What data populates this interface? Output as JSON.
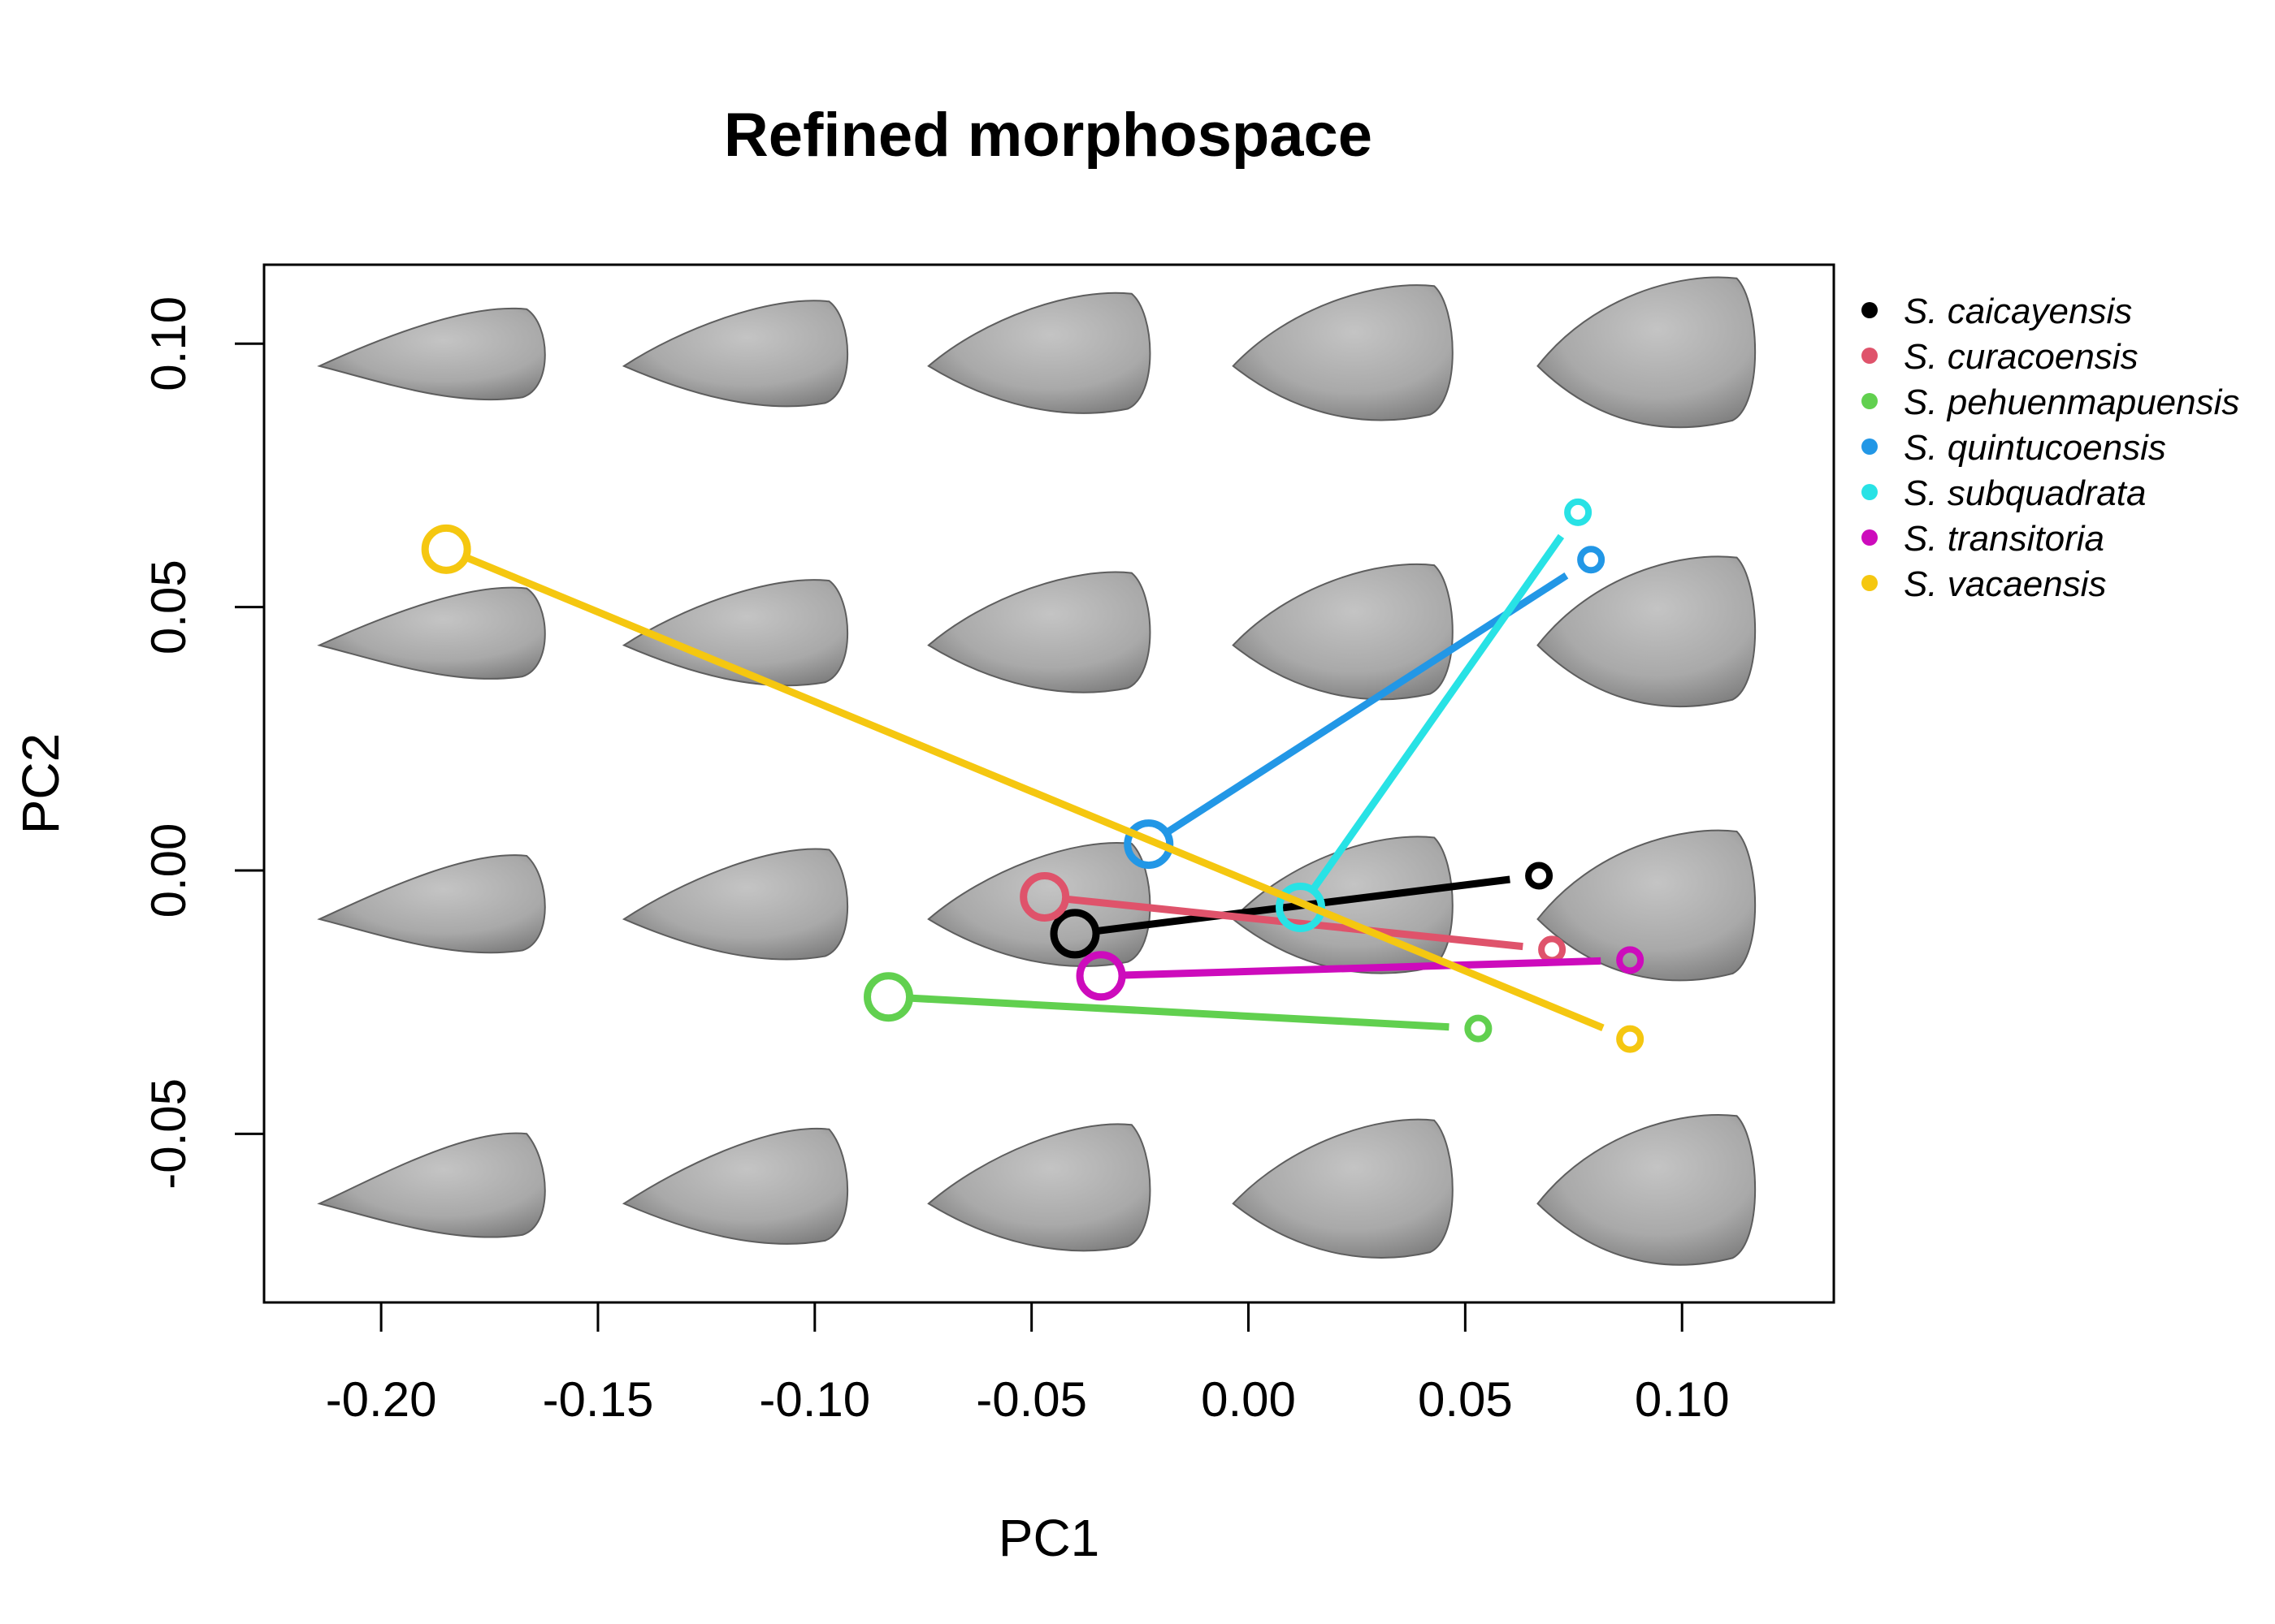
{
  "chart_data": {
    "type": "scatter",
    "title": "Refined morphospace",
    "xlabel": "PC1",
    "ylabel": "PC2",
    "xlim": [
      -0.227,
      0.135
    ],
    "ylim": [
      -0.082,
      0.115
    ],
    "x_ticks": [
      -0.2,
      -0.15,
      -0.1,
      -0.05,
      0.0,
      0.05,
      0.1
    ],
    "x_tick_labels": [
      "-0.20",
      "-0.15",
      "-0.10",
      "-0.05",
      "0.00",
      "0.05",
      "0.10"
    ],
    "y_ticks": [
      -0.05,
      0.0,
      0.05,
      0.1
    ],
    "y_tick_labels": [
      "-0.05",
      "0.00",
      "0.05",
      "0.10"
    ],
    "legend_position": "right, outside plot",
    "background_shapes": {
      "description": "grid of warped shell shape renders",
      "columns_pc1": [
        -0.188,
        -0.118,
        -0.048,
        0.022,
        0.092
      ],
      "rows_pc2": [
        0.097,
        0.044,
        -0.008,
        -0.062
      ]
    },
    "series": [
      {
        "name": "S. caicayensis",
        "color": "#000000",
        "start": [
          -0.04,
          -0.012
        ],
        "end": [
          0.067,
          -0.001
        ]
      },
      {
        "name": "S. curacoensis",
        "color": "#DF536B",
        "start": [
          -0.047,
          -0.005
        ],
        "end": [
          0.07,
          -0.015
        ]
      },
      {
        "name": "S. pehuenmapuensis",
        "color": "#61D04F",
        "start": [
          -0.083,
          -0.024
        ],
        "end": [
          0.053,
          -0.03
        ]
      },
      {
        "name": "S. quintucoensis",
        "color": "#2297E6",
        "start": [
          -0.023,
          0.005
        ],
        "end": [
          0.079,
          0.059
        ]
      },
      {
        "name": "S. subquadrata",
        "color": "#28E2E5",
        "start": [
          0.012,
          -0.007
        ],
        "end": [
          0.076,
          0.068
        ]
      },
      {
        "name": "S. transitoria",
        "color": "#CD0BBC",
        "start": [
          -0.034,
          -0.02
        ],
        "end": [
          0.088,
          -0.017
        ]
      },
      {
        "name": "S. vacaensis",
        "color": "#F5C710",
        "start": [
          -0.185,
          0.061
        ],
        "end": [
          0.088,
          -0.032
        ]
      }
    ]
  }
}
